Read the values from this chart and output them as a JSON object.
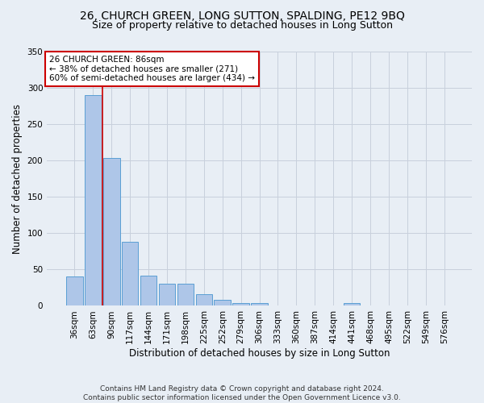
{
  "title_line1": "26, CHURCH GREEN, LONG SUTTON, SPALDING, PE12 9BQ",
  "title_line2": "Size of property relative to detached houses in Long Sutton",
  "xlabel": "Distribution of detached houses by size in Long Sutton",
  "ylabel": "Number of detached properties",
  "footer": "Contains HM Land Registry data © Crown copyright and database right 2024.\nContains public sector information licensed under the Open Government Licence v3.0.",
  "bar_labels": [
    "36sqm",
    "63sqm",
    "90sqm",
    "117sqm",
    "144sqm",
    "171sqm",
    "198sqm",
    "225sqm",
    "252sqm",
    "279sqm",
    "306sqm",
    "333sqm",
    "360sqm",
    "387sqm",
    "414sqm",
    "441sqm",
    "468sqm",
    "495sqm",
    "522sqm",
    "549sqm",
    "576sqm"
  ],
  "bar_values": [
    40,
    290,
    203,
    88,
    42,
    30,
    30,
    16,
    8,
    4,
    4,
    0,
    0,
    0,
    0,
    4,
    0,
    0,
    0,
    0,
    0
  ],
  "bar_color": "#aec6e8",
  "bar_edge_color": "#5a9fd4",
  "vline_x": 1.5,
  "vline_color": "#cc0000",
  "annotation_text": "26 CHURCH GREEN: 86sqm\n← 38% of detached houses are smaller (271)\n60% of semi-detached houses are larger (434) →",
  "annotation_box_color": "white",
  "annotation_box_edge_color": "#cc0000",
  "ylim": [
    0,
    350
  ],
  "yticks": [
    0,
    50,
    100,
    150,
    200,
    250,
    300,
    350
  ],
  "grid_color": "#c8d0dc",
  "bg_color": "#e8eef5",
  "title_fontsize": 10,
  "subtitle_fontsize": 9,
  "axis_label_fontsize": 8.5,
  "tick_fontsize": 7.5,
  "footer_fontsize": 6.5
}
